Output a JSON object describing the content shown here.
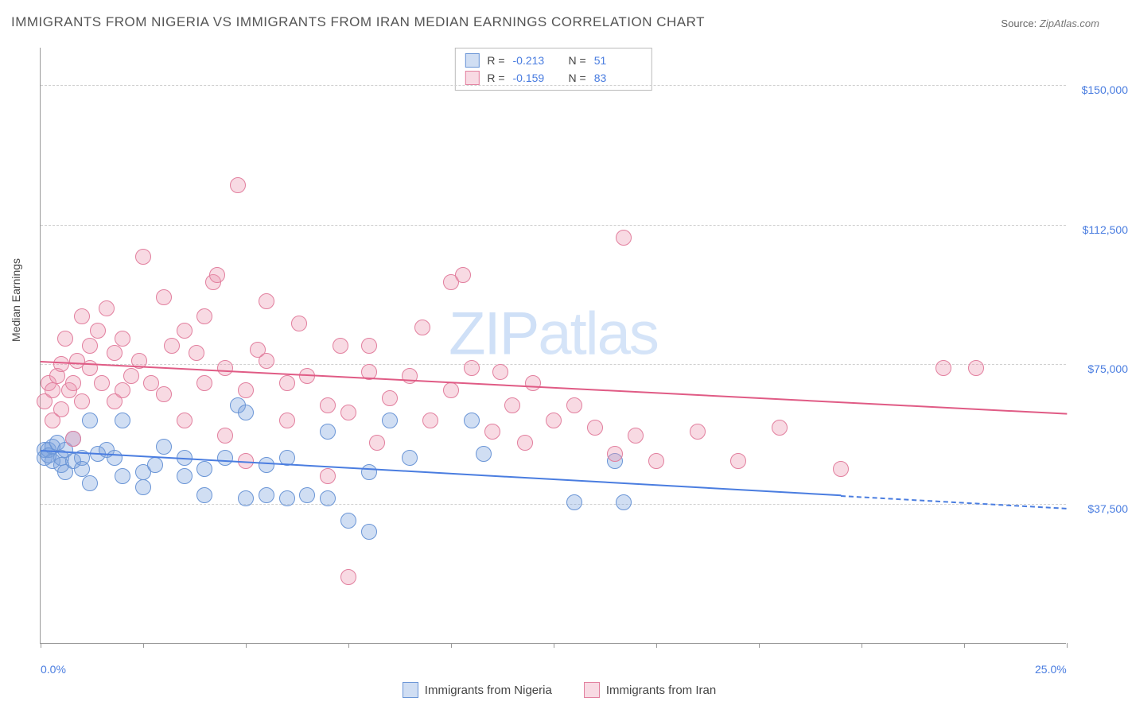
{
  "title": "IMMIGRANTS FROM NIGERIA VS IMMIGRANTS FROM IRAN MEDIAN EARNINGS CORRELATION CHART",
  "source_label": "Source:",
  "source_value": "ZipAtlas.com",
  "watermark_a": "ZIP",
  "watermark_b": "atlas",
  "y_axis_title": "Median Earnings",
  "chart": {
    "type": "scatter",
    "xlim": [
      0,
      25
    ],
    "ylim": [
      0,
      160000
    ],
    "x_ticks": [
      0,
      2.5,
      5,
      7.5,
      10,
      12.5,
      15,
      17.5,
      20,
      22.5,
      25
    ],
    "x_tick_labels_shown": {
      "0": "0.0%",
      "25": "25.0%"
    },
    "y_gridlines": [
      37500,
      75000,
      112500,
      150000
    ],
    "y_tick_labels": {
      "37500": "$37,500",
      "75000": "$75,000",
      "112500": "$112,500",
      "150000": "$150,000"
    },
    "grid_color": "#d0d0d0",
    "background_color": "#ffffff",
    "marker_radius": 10,
    "series": [
      {
        "id": "nigeria",
        "label": "Immigrants from Nigeria",
        "fill": "rgba(120,160,220,0.35)",
        "stroke": "#6a95d6",
        "R": "-0.213",
        "N": "51",
        "trend": {
          "x1": 0,
          "y1": 52000,
          "x2": 19.5,
          "y2": 40000,
          "dashed_tail_to_x": 25,
          "color": "#4a7de0"
        },
        "points": [
          [
            0.1,
            52000
          ],
          [
            0.1,
            50000
          ],
          [
            0.2,
            52000
          ],
          [
            0.3,
            49000
          ],
          [
            0.3,
            53000
          ],
          [
            0.4,
            54000
          ],
          [
            0.5,
            50000
          ],
          [
            0.5,
            48000
          ],
          [
            0.6,
            52000
          ],
          [
            0.6,
            46000
          ],
          [
            0.8,
            49000
          ],
          [
            0.8,
            55000
          ],
          [
            1.0,
            50000
          ],
          [
            1.0,
            47000
          ],
          [
            1.2,
            60000
          ],
          [
            1.2,
            43000
          ],
          [
            1.4,
            51000
          ],
          [
            1.6,
            52000
          ],
          [
            1.8,
            50000
          ],
          [
            2.0,
            45000
          ],
          [
            2.0,
            60000
          ],
          [
            2.5,
            46000
          ],
          [
            2.5,
            42000
          ],
          [
            2.8,
            48000
          ],
          [
            3.0,
            53000
          ],
          [
            3.5,
            50000
          ],
          [
            3.5,
            45000
          ],
          [
            4.0,
            47000
          ],
          [
            4.0,
            40000
          ],
          [
            4.5,
            50000
          ],
          [
            4.8,
            64000
          ],
          [
            5.0,
            62000
          ],
          [
            5.0,
            39000
          ],
          [
            5.5,
            40000
          ],
          [
            5.5,
            48000
          ],
          [
            6.0,
            39000
          ],
          [
            6.0,
            50000
          ],
          [
            6.5,
            40000
          ],
          [
            7.0,
            57000
          ],
          [
            7.0,
            39000
          ],
          [
            7.5,
            33000
          ],
          [
            8.0,
            46000
          ],
          [
            8.0,
            30000
          ],
          [
            8.5,
            60000
          ],
          [
            9.0,
            50000
          ],
          [
            10.5,
            60000
          ],
          [
            10.8,
            51000
          ],
          [
            13.0,
            38000
          ],
          [
            14.0,
            49000
          ],
          [
            14.2,
            38000
          ],
          [
            0.2,
            50500
          ]
        ]
      },
      {
        "id": "iran",
        "label": "Immigrants from Iran",
        "fill": "rgba(235,150,175,0.35)",
        "stroke": "#e27f9e",
        "R": "-0.159",
        "N": "83",
        "trend": {
          "x1": 0,
          "y1": 76000,
          "x2": 25,
          "y2": 62000,
          "color": "#e05b85"
        },
        "points": [
          [
            0.1,
            65000
          ],
          [
            0.2,
            70000
          ],
          [
            0.3,
            60000
          ],
          [
            0.3,
            68000
          ],
          [
            0.4,
            72000
          ],
          [
            0.5,
            75000
          ],
          [
            0.5,
            63000
          ],
          [
            0.6,
            82000
          ],
          [
            0.7,
            68000
          ],
          [
            0.8,
            70000
          ],
          [
            0.8,
            55000
          ],
          [
            0.9,
            76000
          ],
          [
            1.0,
            65000
          ],
          [
            1.0,
            88000
          ],
          [
            1.2,
            80000
          ],
          [
            1.2,
            74000
          ],
          [
            1.4,
            84000
          ],
          [
            1.5,
            70000
          ],
          [
            1.6,
            90000
          ],
          [
            1.8,
            65000
          ],
          [
            1.8,
            78000
          ],
          [
            2.0,
            68000
          ],
          [
            2.0,
            82000
          ],
          [
            2.2,
            72000
          ],
          [
            2.4,
            76000
          ],
          [
            2.5,
            104000
          ],
          [
            2.7,
            70000
          ],
          [
            3.0,
            93000
          ],
          [
            3.0,
            67000
          ],
          [
            3.2,
            80000
          ],
          [
            3.5,
            84000
          ],
          [
            3.5,
            60000
          ],
          [
            3.8,
            78000
          ],
          [
            4.0,
            70000
          ],
          [
            4.0,
            88000
          ],
          [
            4.2,
            97000
          ],
          [
            4.3,
            99000
          ],
          [
            4.5,
            56000
          ],
          [
            4.5,
            74000
          ],
          [
            4.8,
            123000
          ],
          [
            5.0,
            49000
          ],
          [
            5.0,
            68000
          ],
          [
            5.3,
            79000
          ],
          [
            5.5,
            76000
          ],
          [
            5.5,
            92000
          ],
          [
            6.0,
            70000
          ],
          [
            6.0,
            60000
          ],
          [
            6.3,
            86000
          ],
          [
            6.5,
            72000
          ],
          [
            7.0,
            64000
          ],
          [
            7.0,
            45000
          ],
          [
            7.3,
            80000
          ],
          [
            7.5,
            18000
          ],
          [
            7.5,
            62000
          ],
          [
            8.0,
            73000
          ],
          [
            8.0,
            80000
          ],
          [
            8.2,
            54000
          ],
          [
            8.5,
            66000
          ],
          [
            9.0,
            72000
          ],
          [
            9.3,
            85000
          ],
          [
            9.5,
            60000
          ],
          [
            10.0,
            97000
          ],
          [
            10.0,
            68000
          ],
          [
            10.3,
            99000
          ],
          [
            10.5,
            74000
          ],
          [
            11.0,
            57000
          ],
          [
            11.2,
            73000
          ],
          [
            11.5,
            64000
          ],
          [
            11.8,
            54000
          ],
          [
            12.0,
            70000
          ],
          [
            12.5,
            60000
          ],
          [
            13.0,
            64000
          ],
          [
            13.5,
            58000
          ],
          [
            14.0,
            51000
          ],
          [
            14.2,
            109000
          ],
          [
            14.5,
            56000
          ],
          [
            15.0,
            49000
          ],
          [
            16.0,
            57000
          ],
          [
            17.0,
            49000
          ],
          [
            18.0,
            58000
          ],
          [
            19.5,
            47000
          ],
          [
            22.0,
            74000
          ],
          [
            22.8,
            74000
          ]
        ]
      }
    ]
  }
}
